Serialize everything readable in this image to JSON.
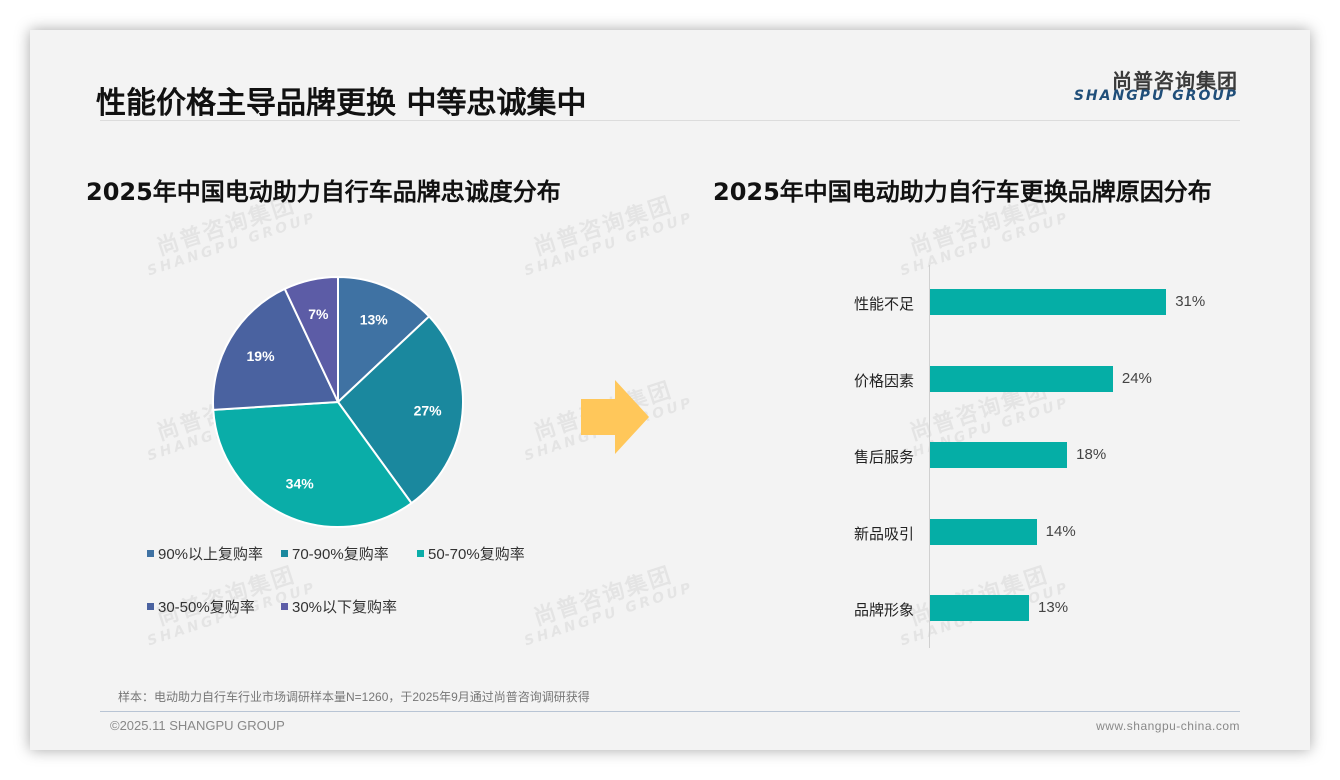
{
  "header": {
    "title": "性能价格主导品牌更换 中等忠诚集中",
    "logo_cn": "尚普咨询集团",
    "logo_en": "SHANGPU GROUP"
  },
  "watermark": {
    "cn": "尚普咨询集团",
    "en": "SHANGPU GROUP"
  },
  "left_chart": {
    "title": "2025年中国电动助力自行车品牌忠诚度分布"
  },
  "right_chart": {
    "title": "2025年中国电动助力自行车更换品牌原因分布"
  },
  "arrow": {
    "icon": "right-arrow-icon",
    "color": "#ffc75a"
  },
  "footer": {
    "note": "样本：电动助力自行车行业市场调研样本量N=1260，于2025年9月通过尚普咨询调研获得",
    "copyright": "©2025.11 SHANGPU GROUP",
    "website": "www.shangpu-china.com"
  },
  "chart_data": [
    {
      "type": "pie",
      "title": "2025年中国电动助力自行车品牌忠诚度分布",
      "categories": [
        "90%以上复购率",
        "70-90%复购率",
        "50-70%复购率",
        "30-50%复购率",
        "30%以下复购率"
      ],
      "values": [
        13,
        27,
        34,
        19,
        7
      ],
      "labels": [
        "13%",
        "27%",
        "34%",
        "19%",
        "7%"
      ],
      "colors": [
        "#3f72a3",
        "#1a889e",
        "#0aada8",
        "#4a62a0",
        "#5c5ca6"
      ],
      "unit": "%",
      "legend_position": "bottom",
      "start_angle": "12 o'clock, clockwise"
    },
    {
      "type": "bar",
      "orientation": "horizontal",
      "title": "2025年中国电动助力自行车更换品牌原因分布",
      "categories": [
        "性能不足",
        "价格因素",
        "售后服务",
        "新品吸引",
        "品牌形象"
      ],
      "values": [
        31,
        24,
        18,
        14,
        13
      ],
      "labels": [
        "31%",
        "24%",
        "18%",
        "14%",
        "13%"
      ],
      "color": "#05aea6",
      "unit": "%",
      "xlabel": "",
      "ylabel": "",
      "grid": false,
      "legend": false
    }
  ]
}
